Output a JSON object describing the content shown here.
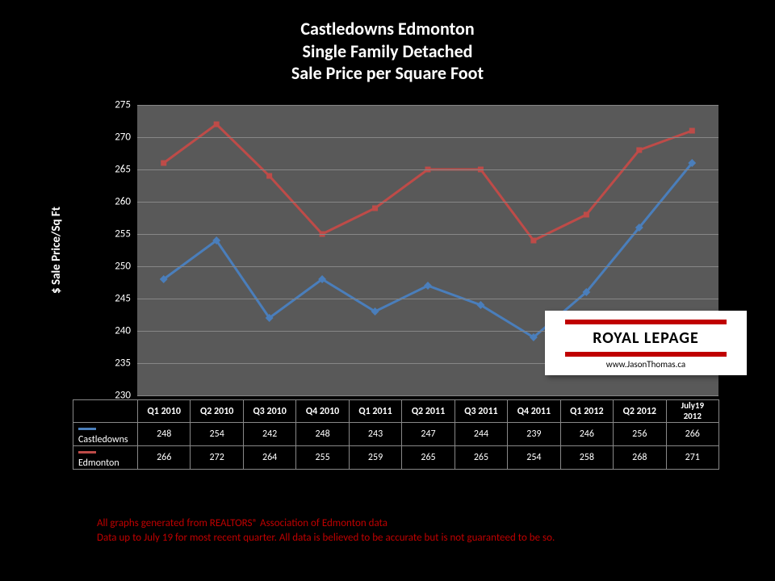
{
  "title": {
    "line1": "Castledowns Edmonton",
    "line2": "Single Family Detached",
    "line3": "Sale Price per Square Foot"
  },
  "chart": {
    "type": "line",
    "background_color": "#595959",
    "page_background": "#000000",
    "grid_color": "#878787",
    "text_color": "#ffffff",
    "y_axis_title": "$ Sale Price/Sq Ft",
    "ylim": [
      230,
      275
    ],
    "ytick_step": 5,
    "yticks": [
      230,
      235,
      240,
      245,
      250,
      255,
      260,
      265,
      270,
      275
    ],
    "categories": [
      "Q1 2010",
      "Q2 2010",
      "Q3 2010",
      "Q4 2010",
      "Q1 2011",
      "Q2 2011",
      "Q3 2011",
      "Q4 2011",
      "Q1 2012",
      "Q2 2012",
      "July19 2012"
    ],
    "series": [
      {
        "name": "Castledowns",
        "color": "#4a7ebb",
        "line_width": 3,
        "marker": "diamond",
        "marker_size": 7,
        "values": [
          248,
          254,
          242,
          248,
          243,
          247,
          244,
          239,
          246,
          256,
          266
        ]
      },
      {
        "name": "Edmonton",
        "color": "#be4b48",
        "line_width": 3,
        "marker": "square",
        "marker_size": 7,
        "values": [
          266,
          272,
          264,
          255,
          259,
          265,
          265,
          254,
          258,
          268,
          271
        ]
      }
    ]
  },
  "footer": {
    "line1": "All graphs generated from REALTORS® Association of Edmonton data",
    "line2": "Data up to July 19 for most recent quarter. All data is believed to be accurate but is not guaranteed to be so.",
    "color": "#c00000"
  },
  "logo": {
    "brand": "ROYAL LEPAGE",
    "url": "www.JasonThomas.ca",
    "bar_color": "#c00000"
  }
}
